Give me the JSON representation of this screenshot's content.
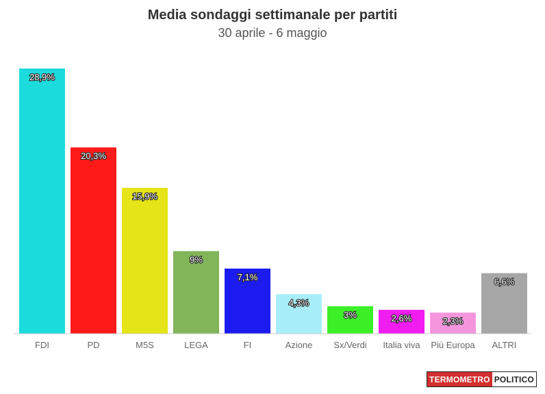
{
  "header": {
    "title": "Media sondaggi settimanale per partiti",
    "subtitle": "30 aprile - 6 maggio"
  },
  "logo": {
    "part1": "TERMOMETRO",
    "part2": "POLITICO"
  },
  "chart_data": {
    "type": "bar",
    "title": "Media sondaggi settimanale per partiti",
    "subtitle": "30 aprile - 6 maggio",
    "categories": [
      "FDI",
      "PD",
      "M5S",
      "LEGA",
      "FI",
      "Azione",
      "Sx/Verdi",
      "Italia viva",
      "Più Europa",
      "ALTRI"
    ],
    "values": [
      28.9,
      20.3,
      15.9,
      9,
      7.1,
      4.3,
      3,
      2.6,
      2.3,
      6.6
    ],
    "labels": [
      "28,9%",
      "20,3%",
      "15,9%",
      "9%",
      "7,1%",
      "4,3%",
      "3%",
      "2,6%",
      "2,3%",
      "6,6%"
    ],
    "colors": [
      "#1cdbdc",
      "#ff1a1a",
      "#e4e418",
      "#82b45a",
      "#1c1cf0",
      "#a8eefa",
      "#3cf028",
      "#f01cf0",
      "#f596dc",
      "#a6a6a6"
    ],
    "ylim": [
      0,
      28.9
    ],
    "grid": false,
    "legend": "none"
  }
}
